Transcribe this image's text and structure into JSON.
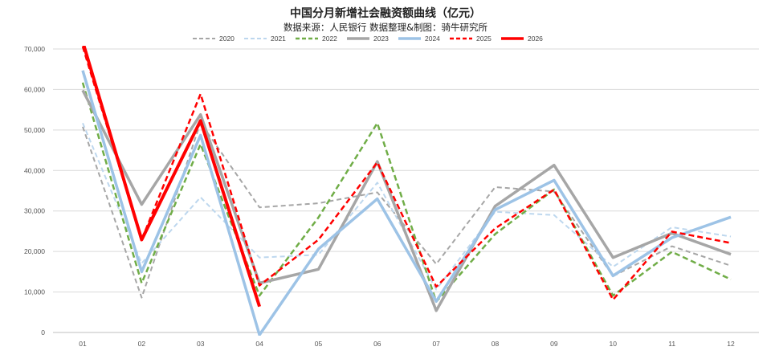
{
  "chart_data": {
    "type": "line",
    "title": "中国分月新增社会融资额曲线（亿元）",
    "subtitle": "数据来源：人民银行  数据整理&制图：骑牛研究所",
    "categories": [
      "01",
      "02",
      "03",
      "04",
      "05",
      "06",
      "07",
      "08",
      "09",
      "10",
      "11",
      "12"
    ],
    "yticks": [
      "0",
      "10,000",
      "20,000",
      "30,000",
      "40,000",
      "50,000",
      "60,000",
      "70,000"
    ],
    "ylim": [
      0,
      70000
    ],
    "grid": true,
    "legend_position": "top-center",
    "series": [
      {
        "name": "2020",
        "color": "#a6a6a6",
        "dash": "dashed",
        "width": 2,
        "values": [
          50800,
          8600,
          51800,
          30900,
          31900,
          34600,
          16900,
          35900,
          34800,
          13900,
          21300,
          16500
        ]
      },
      {
        "name": "2021",
        "color": "#bdd7ee",
        "dash": "dashed",
        "width": 2,
        "values": [
          51700,
          17100,
          33400,
          18500,
          19200,
          37000,
          10600,
          29800,
          29000,
          16200,
          26000,
          23700
        ]
      },
      {
        "name": "2022",
        "color": "#70ad47",
        "dash": "dashed",
        "width": 2.5,
        "values": [
          61700,
          12200,
          46500,
          9100,
          28400,
          51700,
          7600,
          24300,
          35300,
          9100,
          19900,
          13100
        ]
      },
      {
        "name": "2023",
        "color": "#a6a6a6",
        "dash": "solid",
        "width": 3.5,
        "values": [
          59800,
          31600,
          53800,
          12200,
          15600,
          42200,
          5400,
          31200,
          41300,
          18500,
          24500,
          19300
        ]
      },
      {
        "name": "2024",
        "color": "#9dc3e6",
        "dash": "solid",
        "width": 3.5,
        "values": [
          64700,
          15000,
          48700,
          -600,
          20600,
          33000,
          7700,
          30300,
          37600,
          14000,
          23400,
          28500
        ]
      },
      {
        "name": "2025",
        "color": "#ff0000",
        "dash": "dashed",
        "width": 2.5,
        "values": [
          70600,
          22900,
          58900,
          11600,
          22900,
          42000,
          11300,
          25700,
          35300,
          8100,
          24900,
          22100
        ]
      },
      {
        "name": "2026",
        "color": "#ff0000",
        "dash": "solid",
        "width": 4,
        "values": [
          71800,
          22900,
          52300,
          6400,
          null,
          null,
          null,
          null,
          null,
          null,
          null,
          null
        ]
      }
    ]
  }
}
